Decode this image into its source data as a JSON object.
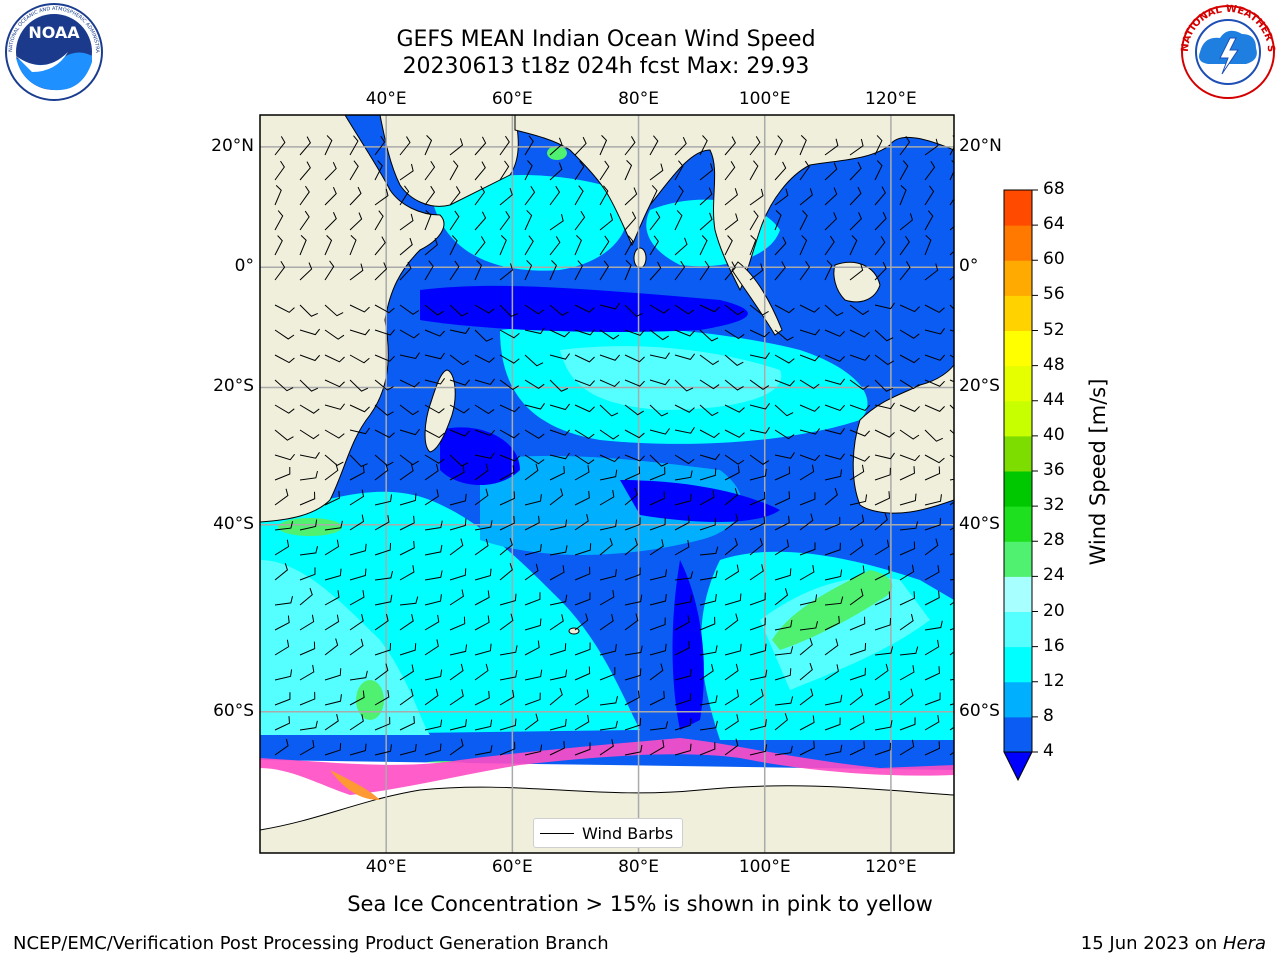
{
  "title": {
    "line1": "GEFS MEAN Indian Ocean Wind Speed",
    "line2": "20230613 t18z 024h fcst   Max: 29.93"
  },
  "logos": {
    "left_text": "NOAA",
    "left_ring_text": "NATIONAL OCEANIC AND ATMOSPHERIC ADMINISTRATION · U.S. DEPARTMENT OF COMMERCE",
    "right_ring_text": "NATIONAL WEATHER SERVICE"
  },
  "map": {
    "lon_ticks": [
      "40°E",
      "60°E",
      "80°E",
      "100°E",
      "120°E"
    ],
    "lon_values": [
      40,
      60,
      80,
      100,
      120
    ],
    "lat_ticks_left": [
      "20°N",
      "0°",
      "20°S",
      "40°S",
      "60°S"
    ],
    "lat_ticks_right": [
      "20°N",
      "0°",
      "20°S",
      "40°S",
      "60°S"
    ],
    "lat_values": [
      20,
      0,
      -20,
      -40,
      -60
    ],
    "extent": {
      "lon_min": 20,
      "lon_max": 130,
      "lat_min": -70,
      "lat_max": 25
    },
    "grid": true,
    "legend_label": "Wind Barbs",
    "legend_placement": "bottom-center"
  },
  "colorbar": {
    "label": "Wind Speed [m/s]",
    "ticks": [
      "4",
      "8",
      "12",
      "16",
      "20",
      "24",
      "28",
      "32",
      "36",
      "40",
      "44",
      "48",
      "52",
      "56",
      "60",
      "64",
      "68"
    ],
    "colors": [
      "#0a5cf2",
      "#00b0ff",
      "#00ffff",
      "#56ffff",
      "#a8ffff",
      "#50f070",
      "#1ee01e",
      "#00c800",
      "#7ddc00",
      "#c8ff00",
      "#e6ff00",
      "#ffff00",
      "#ffd200",
      "#ffaa00",
      "#ff7800",
      "#ff4a00",
      "#ff1e00",
      "#ff0000"
    ],
    "extend_min_color": "#0000ff"
  },
  "footer": {
    "note": "Sea Ice Concentration > 15% is shown in pink to yellow",
    "left": "NCEP/EMC/Verification Post Processing Product Generation Branch",
    "right_prefix": "15 Jun 2023 on ",
    "right_italic": "Hera"
  }
}
